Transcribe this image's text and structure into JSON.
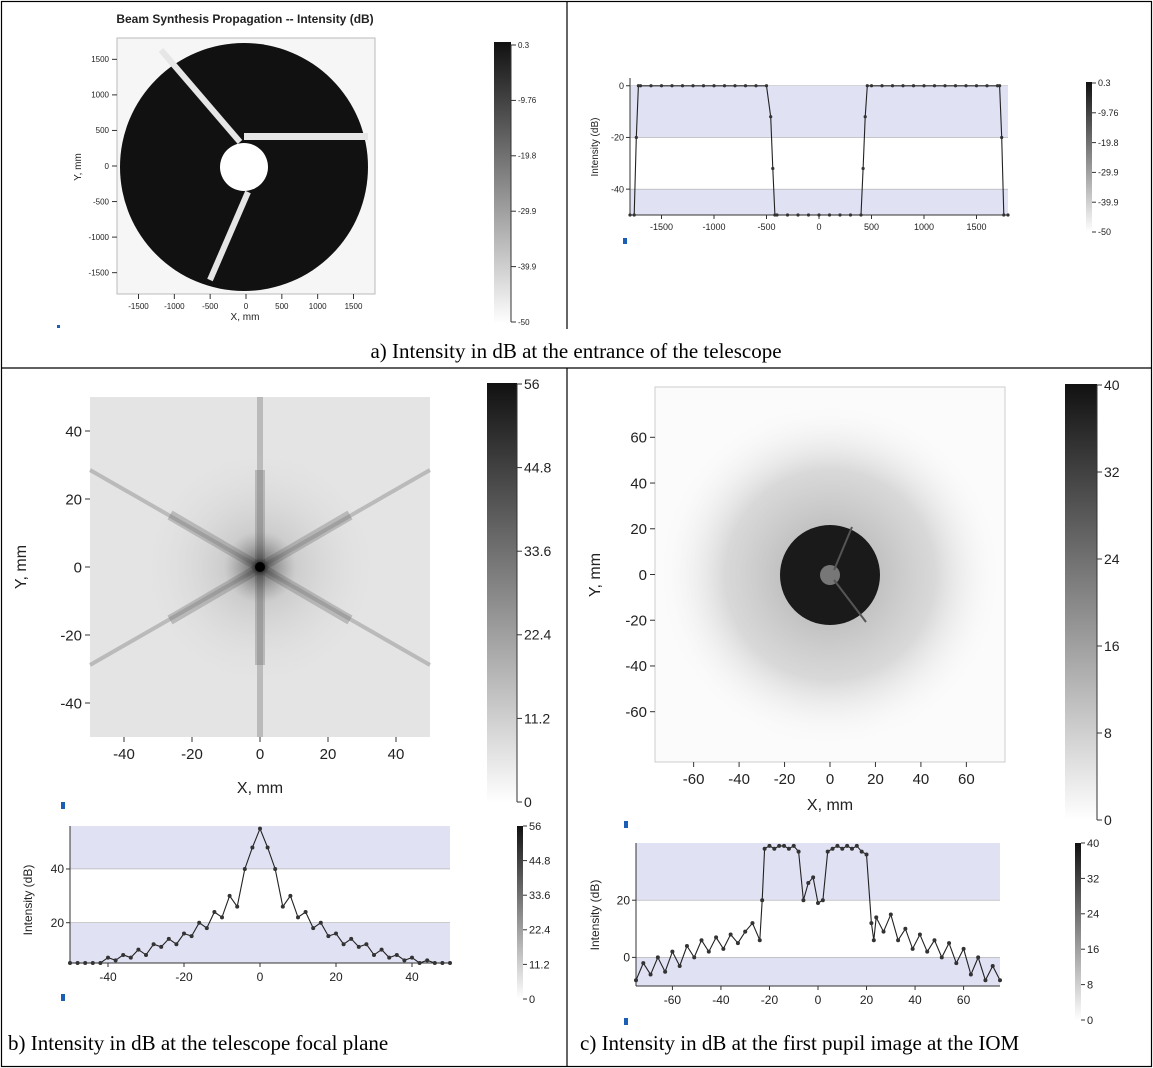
{
  "captions": {
    "a": "a) Intensity in dB at the entrance of the telescope",
    "b": "b) Intensity in dB at the telescope focal plane",
    "c": "c) Intensity in dB at the first pupil image at the IOM"
  },
  "chart_data": [
    {
      "id": "a-map",
      "type": "heatmap",
      "title": "Beam Synthesis Propagation -- Intensity (dB)",
      "xlabel": "X, mm",
      "ylabel": "Y, mm",
      "xticks": [
        -1500,
        -1000,
        -500,
        0,
        500,
        1000,
        1500
      ],
      "yticks": [
        1500,
        1000,
        500,
        0,
        -500,
        -1000,
        -1500
      ],
      "colorbar_ticks": [
        "0.3",
        "-9.76",
        "-19.8",
        "-29.9",
        "-39.9",
        "-50"
      ]
    },
    {
      "id": "a-profile",
      "type": "line",
      "xlabel": "",
      "ylabel": "Intensity (dB)",
      "xticks": [
        -1500,
        -1000,
        -500,
        0,
        500,
        1000,
        1500
      ],
      "yticks": [
        0,
        -20,
        -40
      ],
      "xlim": [
        -1800,
        1800
      ],
      "ylim": [
        -50,
        3
      ],
      "bands": [
        [
          -20,
          0
        ],
        [
          -50,
          -40
        ]
      ],
      "x": [
        -1800,
        -1760,
        -1740,
        -1720,
        -1700,
        -1600,
        -1500,
        -1400,
        -1300,
        -1200,
        -1100,
        -1000,
        -900,
        -800,
        -700,
        -600,
        -500,
        -460,
        -440,
        -420,
        -400,
        -300,
        -200,
        -100,
        0,
        100,
        200,
        300,
        400,
        420,
        440,
        460,
        500,
        600,
        700,
        800,
        900,
        1000,
        1100,
        1200,
        1300,
        1400,
        1500,
        1600,
        1700,
        1720,
        1740,
        1760,
        1800
      ],
      "y": [
        -50,
        -50,
        -20,
        0,
        0,
        0,
        0,
        0,
        0,
        0,
        0,
        0,
        0,
        0,
        0,
        0,
        0,
        -12,
        -32,
        -50,
        -50,
        -50,
        -50,
        -50,
        -50,
        -50,
        -50,
        -50,
        -50,
        -32,
        -12,
        0,
        0,
        0,
        0,
        0,
        0,
        0,
        0,
        0,
        0,
        0,
        0,
        0,
        0,
        0,
        -20,
        -50,
        -50
      ],
      "colorbar_ticks": [
        "0.3",
        "-9.76",
        "-19.8",
        "-29.9",
        "-39.9",
        "-50"
      ]
    },
    {
      "id": "b-map",
      "type": "heatmap",
      "xlabel": "X, mm",
      "ylabel": "Y, mm",
      "xticks": [
        -40,
        -20,
        0,
        20,
        40
      ],
      "yticks": [
        40,
        20,
        0,
        -20,
        -40
      ],
      "colorbar_ticks": [
        "56",
        "44.8",
        "33.6",
        "22.4",
        "11.2",
        "0"
      ]
    },
    {
      "id": "b-profile",
      "type": "line",
      "xlabel": "",
      "ylabel": "Intensity (dB)",
      "xticks": [
        -40,
        -20,
        0,
        20,
        40
      ],
      "yticks": [
        40,
        20
      ],
      "xlim": [
        -50,
        50
      ],
      "ylim": [
        5,
        56
      ],
      "bands": [
        [
          40,
          56
        ],
        [
          5,
          20
        ]
      ],
      "x": [
        -50,
        -48,
        -46,
        -44,
        -42,
        -40,
        -38,
        -36,
        -34,
        -32,
        -30,
        -28,
        -26,
        -24,
        -22,
        -20,
        -18,
        -16,
        -14,
        -12,
        -10,
        -8,
        -6,
        -4,
        -2,
        0,
        2,
        4,
        6,
        8,
        10,
        12,
        14,
        16,
        18,
        20,
        22,
        24,
        26,
        28,
        30,
        32,
        34,
        36,
        38,
        40,
        42,
        44,
        46,
        48,
        50
      ],
      "y": [
        5,
        5,
        5,
        5,
        5,
        7,
        6,
        8,
        7,
        10,
        8,
        12,
        11,
        14,
        12,
        16,
        15,
        20,
        18,
        24,
        22,
        30,
        26,
        40,
        48,
        55,
        48,
        40,
        26,
        30,
        22,
        24,
        18,
        20,
        15,
        16,
        12,
        14,
        11,
        12,
        8,
        10,
        7,
        8,
        6,
        7,
        5,
        6,
        5,
        5,
        5
      ],
      "colorbar_ticks": [
        "56",
        "44.8",
        "33.6",
        "22.4",
        "11.2",
        "0"
      ]
    },
    {
      "id": "c-map",
      "type": "heatmap",
      "xlabel": "X, mm",
      "ylabel": "Y, mm",
      "xticks": [
        -60,
        -40,
        -20,
        0,
        20,
        40,
        60
      ],
      "yticks": [
        60,
        40,
        20,
        0,
        -20,
        -40,
        -60
      ],
      "colorbar_ticks": [
        "40",
        "32",
        "24",
        "16",
        "8",
        "0"
      ]
    },
    {
      "id": "c-profile",
      "type": "line",
      "xlabel": "",
      "ylabel": "Intensity (dB)",
      "xticks": [
        -60,
        -40,
        -20,
        0,
        20,
        40,
        60
      ],
      "yticks": [
        20,
        0
      ],
      "xlim": [
        -75,
        75
      ],
      "ylim": [
        -10,
        40
      ],
      "bands": [
        [
          20,
          40
        ],
        [
          -10,
          0
        ]
      ],
      "x": [
        -75,
        -72,
        -69,
        -66,
        -63,
        -60,
        -57,
        -54,
        -51,
        -48,
        -45,
        -42,
        -39,
        -36,
        -33,
        -30,
        -27,
        -24,
        -23,
        -22,
        -20,
        -18,
        -16,
        -14,
        -12,
        -10,
        -8,
        -6,
        -4,
        -2,
        0,
        2,
        4,
        6,
        8,
        10,
        12,
        14,
        16,
        18,
        20,
        22,
        23,
        24,
        27,
        30,
        33,
        36,
        39,
        42,
        45,
        48,
        51,
        54,
        57,
        60,
        63,
        66,
        69,
        72,
        75
      ],
      "y": [
        -8,
        -2,
        -6,
        0,
        -5,
        2,
        -3,
        4,
        0,
        6,
        2,
        7,
        3,
        8,
        5,
        9,
        12,
        6,
        20,
        38,
        39,
        38,
        39,
        39,
        38,
        39,
        37,
        20,
        26,
        28,
        19,
        20,
        37,
        38,
        39,
        38,
        39,
        38,
        39,
        37,
        36,
        12,
        6,
        14,
        9,
        15,
        6,
        10,
        3,
        8,
        2,
        6,
        0,
        5,
        -2,
        3,
        -6,
        0,
        -8,
        -3,
        -8
      ],
      "colorbar_ticks": [
        "40",
        "32",
        "24",
        "16",
        "8",
        "0"
      ]
    }
  ]
}
